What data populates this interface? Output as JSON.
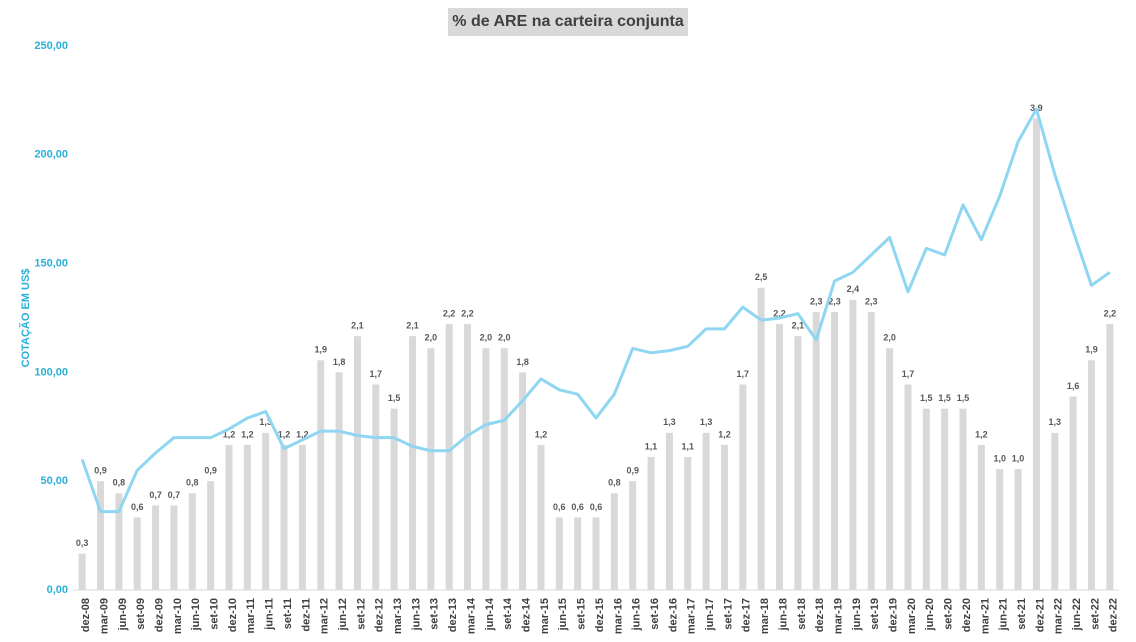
{
  "chart_data": {
    "type": "bar-line",
    "title": "% de ARE na carteira conjunta",
    "y_axis_label": "COTAÇÃO EM US$",
    "categories": [
      "dez-08",
      "mar-09",
      "jun-09",
      "set-09",
      "dez-09",
      "mar-10",
      "jun-10",
      "set-10",
      "dez-10",
      "mar-11",
      "jun-11",
      "set-11",
      "dez-11",
      "mar-12",
      "jun-12",
      "set-12",
      "dez-12",
      "mar-13",
      "jun-13",
      "set-13",
      "dez-13",
      "mar-14",
      "jun-14",
      "set-14",
      "dez-14",
      "mar-15",
      "jun-15",
      "set-15",
      "dez-15",
      "mar-16",
      "jun-16",
      "set-16",
      "dez-16",
      "mar-17",
      "jun-17",
      "set-17",
      "dez-17",
      "mar-18",
      "jun-18",
      "set-18",
      "dez-18",
      "mar-19",
      "jun-19",
      "set-19",
      "dez-19",
      "mar-20",
      "jun-20",
      "set-20",
      "dez-20",
      "mar-21",
      "jun-21",
      "set-21",
      "dez-21",
      "mar-22",
      "jun-22",
      "set-22",
      "dez-22"
    ],
    "series": [
      {
        "kind": "bar",
        "axis": "y2",
        "color": "#d9d9d9",
        "values": [
          0.3,
          0.9,
          0.8,
          0.6,
          0.7,
          0.7,
          0.8,
          0.9,
          1.2,
          1.2,
          1.3,
          1.2,
          1.2,
          1.9,
          1.8,
          2.1,
          1.7,
          1.5,
          2.1,
          2.0,
          2.2,
          2.2,
          2.0,
          2.0,
          1.8,
          1.2,
          0.6,
          0.6,
          0.6,
          0.8,
          0.9,
          1.1,
          1.3,
          1.1,
          1.3,
          1.2,
          1.7,
          2.5,
          2.2,
          2.1,
          2.3,
          2.3,
          2.4,
          2.3,
          2.0,
          1.7,
          1.5,
          1.5,
          1.5,
          1.2,
          1.0,
          1.0,
          3.9,
          1.3,
          1.6,
          1.9,
          2.2
        ],
        "value_labels": [
          "0,3",
          "0,9",
          "0,8",
          "0,6",
          "0,7",
          "0,7",
          "0,8",
          "0,9",
          "1,2",
          "1,2",
          "1,3",
          "1,2",
          "1,2",
          "1,9",
          "1,8",
          "2,1",
          "1,7",
          "1,5",
          "2,1",
          "2,0",
          "2,2",
          "2,2",
          "2,0",
          "2,0",
          "1,8",
          "1,2",
          "0,6",
          "0,6",
          "0,6",
          "0,8",
          "0,9",
          "1,1",
          "1,3",
          "1,1",
          "1,3",
          "1,2",
          "1,7",
          "2,5",
          "2,2",
          "2,1",
          "2,3",
          "2,3",
          "2,4",
          "2,3",
          "2,0",
          "1,7",
          "1,5",
          "1,5",
          "1,5",
          "1,2",
          "1,0",
          "1,0",
          "3,9",
          "1,3",
          "1,6",
          "1,9",
          "2,2"
        ]
      },
      {
        "kind": "line",
        "axis": "y",
        "color": "#8fd6f2",
        "values": [
          60,
          36,
          36,
          55,
          63,
          70,
          70,
          70,
          74,
          79,
          82,
          65,
          69,
          73,
          73,
          71,
          70,
          70,
          66,
          64,
          64,
          71,
          76,
          78,
          87,
          97,
          92,
          90,
          79,
          90,
          111,
          109,
          110,
          112,
          120,
          120,
          130,
          124,
          125,
          127,
          115,
          142,
          146,
          154,
          162,
          137,
          157,
          154,
          177,
          161,
          181,
          206,
          221,
          191,
          165,
          140,
          146
        ]
      }
    ],
    "ylim": [
      0,
      250
    ],
    "yticks": [
      {
        "value": 0,
        "label": "0,00"
      },
      {
        "value": 50,
        "label": "50,00"
      },
      {
        "value": 100,
        "label": "100,00"
      },
      {
        "value": 150,
        "label": "150,00"
      },
      {
        "value": 200,
        "label": "200,00"
      },
      {
        "value": 250,
        "label": "250,00"
      }
    ],
    "y2lim": [
      0,
      4.5
    ]
  }
}
